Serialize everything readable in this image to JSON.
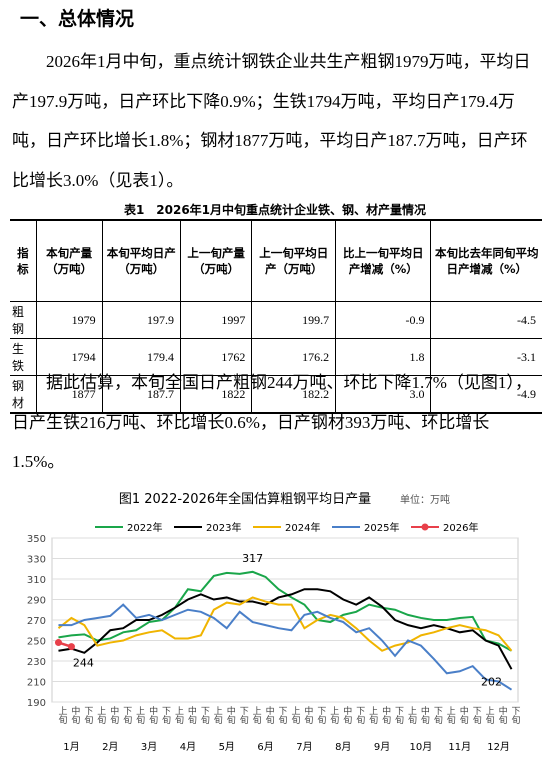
{
  "heading": "一、总体情况",
  "paragraphs": [
    "2026年1月中旬，重点统计钢铁企业共生产粗钢1979万吨，平均日产197.9万吨，日产环比下降0.9%；生铁1794万吨，平均日产179.4万吨，日产环比增长1.8%；钢材1877万吨，平均日产187.7万吨，日产环比增长3.0%（见表1）。",
    "据此估算，本旬全国日产粗钢244万吨、环比下降1.7%（见图1），日产生铁216万吨、环比增长0.6%，日产钢材393万吨、环比增长1.5%。"
  ],
  "table": {
    "caption": "表1　2026年1月中旬重点统计企业铁、钢、材产量情况",
    "header": [
      "指标",
      "本旬产量（万吨）",
      "本旬平均日产（万吨）",
      "上一旬产量（万吨）",
      "上一旬平均日产（万吨）",
      "比上一旬平均日产增减（%）",
      "本旬比去年同旬平均日产增减（%）"
    ],
    "rows": [
      [
        "粗钢",
        "1979",
        "197.9",
        "1997",
        "199.7",
        "-0.9",
        "-4.5"
      ],
      [
        "生铁",
        "1794",
        "179.4",
        "1762",
        "176.2",
        "1.8",
        "-3.1"
      ],
      [
        "钢材",
        "1877",
        "187.7",
        "1822",
        "182.2",
        "3.0",
        "-4.9"
      ]
    ]
  },
  "chart_data": {
    "type": "line",
    "title": "图1 2022-2026年全国估算粗钢平均日产量",
    "unit": "单位：万吨",
    "categories": [
      "上旬",
      "中旬",
      "下旬",
      "上旬",
      "中旬",
      "下旬",
      "上旬",
      "中旬",
      "下旬",
      "上旬",
      "中旬",
      "下旬",
      "上旬",
      "中旬",
      "下旬",
      "上旬",
      "中旬",
      "下旬",
      "上旬",
      "中旬",
      "下旬",
      "上旬",
      "中旬",
      "下旬",
      "上旬",
      "中旬",
      "下旬",
      "上旬",
      "中旬",
      "下旬",
      "上旬",
      "中旬",
      "下旬",
      "上旬",
      "中旬",
      "下旬"
    ],
    "months": [
      "1月",
      "2月",
      "3月",
      "4月",
      "5月",
      "6月",
      "7月",
      "8月",
      "9月",
      "10月",
      "11月",
      "12月"
    ],
    "ylim": [
      190,
      350
    ],
    "yticks": [
      190,
      210,
      230,
      250,
      270,
      290,
      310,
      330,
      350
    ],
    "grid": true,
    "series": [
      {
        "name": "2022年",
        "color": "#1aa64a",
        "values": [
          253,
          255,
          256,
          250,
          252,
          258,
          260,
          268,
          270,
          282,
          300,
          298,
          313,
          316,
          315,
          317,
          312,
          300,
          292,
          285,
          270,
          268,
          275,
          278,
          285,
          282,
          280,
          275,
          272,
          270,
          270,
          272,
          273,
          250,
          247,
          240
        ]
      },
      {
        "name": "2023年",
        "color": "#000000",
        "values": [
          240,
          242,
          238,
          248,
          260,
          262,
          270,
          270,
          275,
          282,
          290,
          295,
          290,
          292,
          288,
          288,
          285,
          292,
          295,
          300,
          300,
          298,
          290,
          285,
          292,
          283,
          270,
          265,
          262,
          265,
          262,
          258,
          260,
          250,
          245,
          222
        ]
      },
      {
        "name": "2024年",
        "color": "#f0b400",
        "values": [
          262,
          272,
          265,
          245,
          248,
          250,
          255,
          258,
          260,
          252,
          252,
          255,
          280,
          287,
          285,
          292,
          288,
          285,
          285,
          262,
          270,
          275,
          272,
          262,
          250,
          240,
          245,
          248,
          255,
          258,
          262,
          265,
          262,
          260,
          255,
          240
        ]
      },
      {
        "name": "2025年",
        "color": "#4a7fc8",
        "values": [
          265,
          265,
          270,
          272,
          274,
          285,
          272,
          275,
          270,
          275,
          280,
          278,
          272,
          262,
          278,
          268,
          265,
          262,
          260,
          275,
          278,
          272,
          268,
          258,
          262,
          250,
          235,
          250,
          245,
          232,
          218,
          220,
          225,
          212,
          210,
          202
        ]
      },
      {
        "name": "2026年",
        "color": "#e8404a",
        "values": [
          248,
          244,
          null,
          null,
          null,
          null,
          null,
          null,
          null,
          null,
          null,
          null,
          null,
          null,
          null,
          null,
          null,
          null,
          null,
          null,
          null,
          null,
          null,
          null,
          null,
          null,
          null,
          null,
          null,
          null,
          null,
          null,
          null,
          null,
          null,
          null
        ]
      }
    ],
    "annotations": [
      "317",
      "244",
      "202"
    ]
  }
}
